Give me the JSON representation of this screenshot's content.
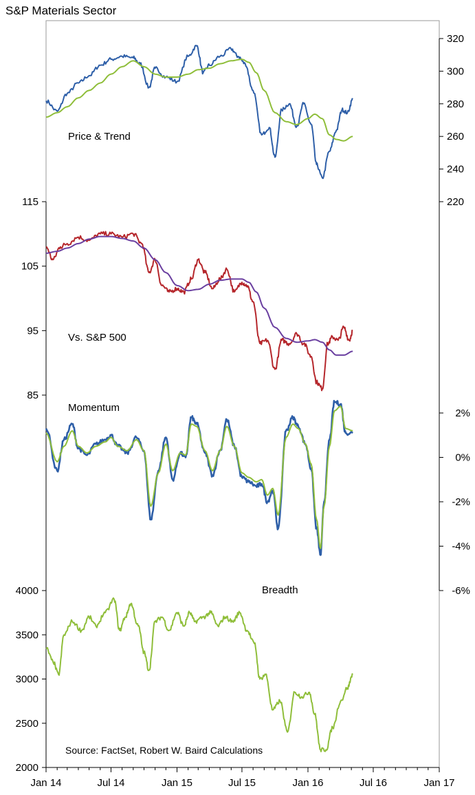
{
  "title": "S&P Materials Sector",
  "source": "Source: FactSet, Robert W. Baird Calculations",
  "colors": {
    "price": "#2e5fa8",
    "price_trend": "#8fbe3a",
    "relative": "#b5262b",
    "relative_trend": "#6a3fa0",
    "momentum": "#2e5fa8",
    "momentum_signal": "#8fbe3a",
    "breadth": "#8fbe3a",
    "axis": "#000000"
  },
  "chart_data": [
    {
      "type": "line",
      "panel_label": "Price & Trend",
      "y_axis_side": "right",
      "ylim": [
        220,
        330
      ],
      "y_ticks": [
        "220",
        "240",
        "260",
        "280",
        "300",
        "320"
      ],
      "series": [
        {
          "x": [
            "2014-01-01",
            "2014-02-01",
            "2014-03-01",
            "2014-04-01",
            "2014-05-01",
            "2014-06-01",
            "2014-07-01",
            "2014-08-01",
            "2014-09-01",
            "2014-09-20",
            "2014-10-15",
            "2014-11-01",
            "2014-12-01",
            "2015-01-01",
            "2015-02-01",
            "2015-02-25",
            "2015-03-15",
            "2015-04-01",
            "2015-05-01",
            "2015-06-01",
            "2015-06-20",
            "2015-07-10",
            "2015-08-01",
            "2015-08-25",
            "2015-09-15",
            "2015-10-01",
            "2015-10-20",
            "2015-11-10",
            "2015-12-01",
            "2015-12-20",
            "2016-01-10",
            "2016-01-25",
            "2016-02-10",
            "2016-03-01",
            "2016-03-20",
            "2016-04-05",
            "2016-04-20",
            "2016-05-05"
          ],
          "values": [
            288,
            281,
            293,
            300,
            305,
            312,
            316,
            318,
            317,
            313,
            297,
            310,
            304,
            301,
            318,
            325,
            307,
            312,
            318,
            323,
            318,
            313,
            295,
            265,
            270,
            250,
            282,
            286,
            271,
            286,
            272,
            245,
            236,
            254,
            268,
            282,
            280,
            289
          ]
        },
        {
          "x": [
            "2014-01-01",
            "2014-02-01",
            "2014-03-01",
            "2014-04-01",
            "2014-05-01",
            "2014-06-01",
            "2014-07-01",
            "2014-08-01",
            "2014-09-01",
            "2014-10-01",
            "2014-11-01",
            "2014-12-01",
            "2015-01-01",
            "2015-02-01",
            "2015-03-01",
            "2015-04-01",
            "2015-05-01",
            "2015-06-01",
            "2015-07-01",
            "2015-07-20",
            "2015-08-10",
            "2015-09-01",
            "2015-10-01",
            "2015-11-01",
            "2015-12-01",
            "2016-01-01",
            "2016-01-20",
            "2016-02-10",
            "2016-03-01",
            "2016-03-20",
            "2016-04-10",
            "2016-05-05"
          ],
          "values": [
            277,
            280,
            284,
            290,
            295,
            300,
            306,
            311,
            315,
            311,
            306,
            304,
            304,
            306,
            309,
            310,
            313,
            315,
            316,
            314,
            307,
            295,
            280,
            274,
            272,
            276,
            279,
            276,
            265,
            262,
            261,
            264
          ]
        }
      ]
    },
    {
      "type": "line",
      "panel_label": "Vs. S&P 500",
      "y_axis_side": "left",
      "ylim": [
        85,
        115
      ],
      "y_ticks": [
        "85",
        "95",
        "105",
        "115"
      ],
      "series": [
        {
          "x": [
            "2014-01-01",
            "2014-01-20",
            "2014-02-10",
            "2014-03-01",
            "2014-04-01",
            "2014-05-01",
            "2014-06-01",
            "2014-07-01",
            "2014-08-01",
            "2014-09-01",
            "2014-09-25",
            "2014-10-15",
            "2014-11-01",
            "2014-11-20",
            "2014-12-10",
            "2015-01-01",
            "2015-01-20",
            "2015-02-10",
            "2015-03-01",
            "2015-03-20",
            "2015-04-10",
            "2015-05-01",
            "2015-05-20",
            "2015-06-10",
            "2015-07-01",
            "2015-07-15",
            "2015-08-01",
            "2015-08-20",
            "2015-09-10",
            "2015-10-01",
            "2015-10-20",
            "2015-11-10",
            "2015-12-01",
            "2015-12-20",
            "2016-01-10",
            "2016-01-25",
            "2016-02-10",
            "2016-02-25",
            "2016-03-10",
            "2016-03-25",
            "2016-04-10",
            "2016-04-25",
            "2016-05-05"
          ],
          "values": [
            108,
            106,
            108,
            108.5,
            109.5,
            109,
            110,
            110,
            109.5,
            110,
            108.5,
            104,
            106,
            102,
            101,
            101.5,
            101,
            103,
            106,
            104,
            101.5,
            103,
            104.5,
            101,
            102.5,
            102,
            99.5,
            93,
            93.5,
            89,
            93.5,
            93,
            94.5,
            93,
            91,
            87,
            86,
            93,
            94,
            93.5,
            95.5,
            93.5,
            95
          ]
        },
        {
          "x": [
            "2014-01-01",
            "2014-02-01",
            "2014-03-01",
            "2014-04-01",
            "2014-05-01",
            "2014-06-01",
            "2014-07-01",
            "2014-08-01",
            "2014-09-01",
            "2014-10-01",
            "2014-11-01",
            "2014-12-01",
            "2015-01-01",
            "2015-02-01",
            "2015-03-01",
            "2015-04-01",
            "2015-05-01",
            "2015-06-01",
            "2015-07-01",
            "2015-07-20",
            "2015-08-10",
            "2015-09-01",
            "2015-10-01",
            "2015-11-01",
            "2015-12-01",
            "2016-01-01",
            "2016-01-20",
            "2016-02-10",
            "2016-03-01",
            "2016-03-20",
            "2016-04-10",
            "2016-05-05"
          ],
          "values": [
            107,
            107.3,
            107.8,
            108.5,
            109.2,
            109.6,
            109.6,
            109.3,
            108.9,
            107.8,
            106,
            104,
            102,
            101.2,
            101.4,
            102.2,
            102.8,
            103,
            103,
            102.5,
            101,
            98.5,
            95.5,
            93.8,
            93.2,
            93.4,
            93.6,
            93.2,
            92,
            91.2,
            91.2,
            91.8
          ]
        }
      ]
    },
    {
      "type": "line",
      "panel_label": "Momentum",
      "y_axis_side": "right",
      "ylim": [
        -6,
        2
      ],
      "y_ticks": [
        "-6%",
        "-4%",
        "-2%",
        "0%",
        "2%"
      ],
      "series": [
        {
          "x": [
            "2014-01-01",
            "2014-02-01",
            "2014-02-20",
            "2014-03-15",
            "2014-04-01",
            "2014-04-25",
            "2014-05-20",
            "2014-06-15",
            "2014-07-01",
            "2014-07-20",
            "2014-08-15",
            "2014-09-10",
            "2014-10-01",
            "2014-10-20",
            "2014-11-10",
            "2014-12-01",
            "2014-12-20",
            "2015-01-10",
            "2015-01-25",
            "2015-02-10",
            "2015-02-25",
            "2015-03-20",
            "2015-04-10",
            "2015-05-01",
            "2015-05-20",
            "2015-06-10",
            "2015-07-01",
            "2015-07-20",
            "2015-08-10",
            "2015-08-25",
            "2015-09-10",
            "2015-09-25",
            "2015-10-10",
            "2015-11-01",
            "2015-11-20",
            "2015-12-05",
            "2015-12-25",
            "2016-01-10",
            "2016-01-25",
            "2016-02-05",
            "2016-02-15",
            "2016-03-01",
            "2016-03-15",
            "2016-04-01",
            "2016-04-15",
            "2016-05-05"
          ],
          "values": [
            1.3,
            -0.6,
            0.8,
            1.5,
            0.4,
            0.1,
            0.6,
            0.8,
            1.0,
            0.5,
            0.2,
            0.9,
            0.3,
            -2.8,
            -0.6,
            0.9,
            -1.0,
            0.2,
            0.0,
            1.8,
            1.5,
            0.2,
            -0.8,
            0.3,
            1.7,
            0.5,
            -0.9,
            -1.1,
            -1.3,
            -1.2,
            -2.0,
            -1.5,
            -3.2,
            1.2,
            1.8,
            1.4,
            0.6,
            -0.5,
            -3.2,
            -4.4,
            -2.0,
            0.8,
            2.5,
            2.4,
            1.1,
            1.1
          ]
        },
        {
          "x": [
            "2014-01-01",
            "2014-02-01",
            "2014-02-20",
            "2014-03-15",
            "2014-04-01",
            "2014-04-25",
            "2014-05-20",
            "2014-06-15",
            "2014-07-01",
            "2014-07-20",
            "2014-08-15",
            "2014-09-10",
            "2014-10-01",
            "2014-10-20",
            "2014-11-10",
            "2014-12-01",
            "2014-12-20",
            "2015-01-10",
            "2015-01-25",
            "2015-02-10",
            "2015-02-25",
            "2015-03-20",
            "2015-04-10",
            "2015-05-01",
            "2015-05-20",
            "2015-06-10",
            "2015-07-01",
            "2015-07-20",
            "2015-08-10",
            "2015-08-25",
            "2015-09-10",
            "2015-09-25",
            "2015-10-10",
            "2015-11-01",
            "2015-11-20",
            "2015-12-05",
            "2015-12-25",
            "2016-01-10",
            "2016-01-25",
            "2016-02-05",
            "2016-02-15",
            "2016-03-01",
            "2016-03-15",
            "2016-04-01",
            "2016-04-15",
            "2016-05-05"
          ],
          "values": [
            1.1,
            -0.2,
            0.5,
            1.2,
            0.5,
            0.2,
            0.5,
            0.7,
            0.9,
            0.5,
            0.3,
            0.8,
            0.3,
            -2.2,
            -0.7,
            0.6,
            -0.6,
            0.2,
            0.1,
            1.5,
            1.4,
            0.3,
            -0.6,
            0.3,
            1.4,
            0.5,
            -0.7,
            -0.9,
            -1.1,
            -1.0,
            -1.7,
            -1.4,
            -2.6,
            0.9,
            1.5,
            1.3,
            0.6,
            -0.3,
            -2.8,
            -4.1,
            -2.2,
            0.5,
            2.1,
            2.3,
            1.3,
            1.2
          ]
        }
      ]
    },
    {
      "type": "line",
      "panel_label": "Breadth",
      "y_axis_side": "left",
      "ylim": [
        2000,
        4000
      ],
      "y_ticks": [
        "2000",
        "2500",
        "3000",
        "3500",
        "4000"
      ],
      "series": [
        {
          "x": [
            "2014-01-01",
            "2014-01-20",
            "2014-02-05",
            "2014-02-20",
            "2014-03-15",
            "2014-04-10",
            "2014-05-01",
            "2014-05-20",
            "2014-06-15",
            "2014-07-10",
            "2014-07-25",
            "2014-08-10",
            "2014-08-25",
            "2014-09-15",
            "2014-10-01",
            "2014-10-15",
            "2014-11-01",
            "2014-11-20",
            "2014-12-10",
            "2015-01-01",
            "2015-01-20",
            "2015-02-05",
            "2015-02-20",
            "2015-03-15",
            "2015-04-05",
            "2015-04-25",
            "2015-05-15",
            "2015-06-05",
            "2015-06-25",
            "2015-07-15",
            "2015-08-05",
            "2015-08-20",
            "2015-09-05",
            "2015-09-25",
            "2015-10-15",
            "2015-11-05",
            "2015-11-25",
            "2015-12-15",
            "2016-01-05",
            "2016-01-20",
            "2016-02-05",
            "2016-02-20",
            "2016-03-10",
            "2016-04-01",
            "2016-04-20",
            "2016-05-05"
          ],
          "values": [
            3350,
            3200,
            3050,
            3500,
            3650,
            3550,
            3700,
            3600,
            3750,
            3900,
            3550,
            3700,
            3850,
            3600,
            3300,
            3100,
            3650,
            3700,
            3550,
            3750,
            3600,
            3750,
            3650,
            3700,
            3750,
            3600,
            3700,
            3650,
            3750,
            3550,
            3400,
            3000,
            3050,
            2650,
            2750,
            2400,
            2850,
            2800,
            2850,
            2600,
            2200,
            2200,
            2450,
            2750,
            2900,
            3050
          ]
        }
      ]
    }
  ],
  "x_axis": {
    "start": "2014-01-01",
    "end": "2017-01-01",
    "tick_labels": [
      "Jan 14",
      "Jul 14",
      "Jan 15",
      "Jul 15",
      "Jan 16",
      "Jul 16",
      "Jan 17"
    ]
  }
}
